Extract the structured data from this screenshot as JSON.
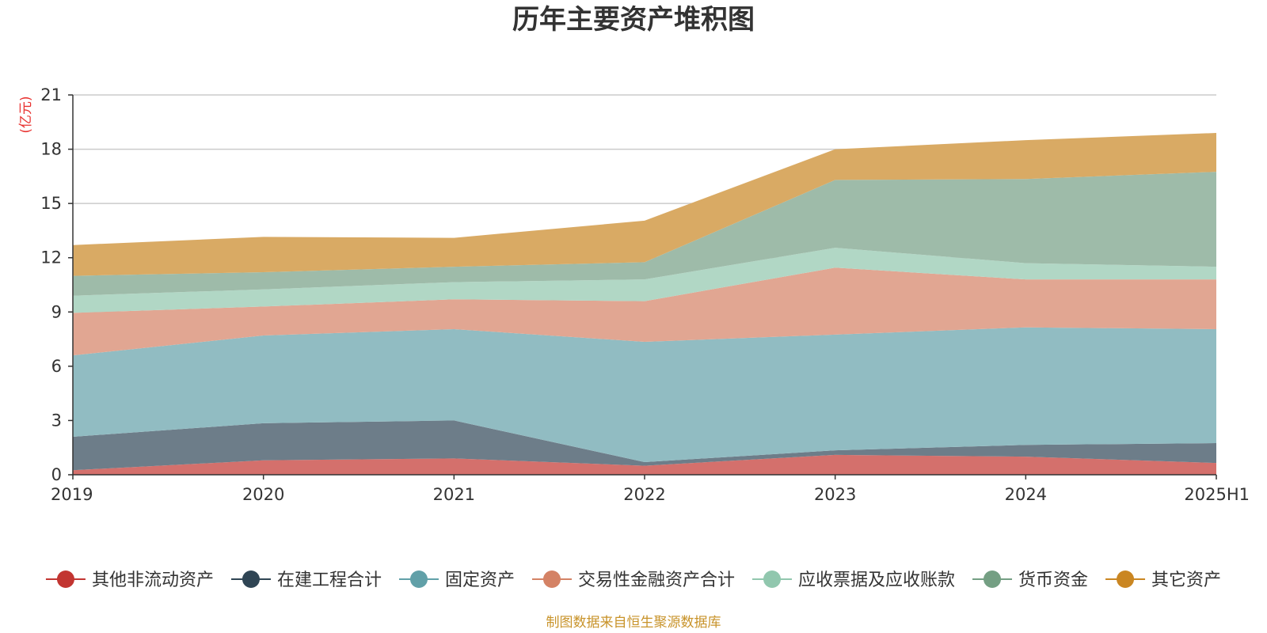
{
  "chart_data": {
    "type": "area",
    "stacked": true,
    "title": "历年主要资产堆积图",
    "ylabel": "(亿元)",
    "ylim": [
      0,
      21
    ],
    "yticks": [
      0,
      3,
      6,
      9,
      12,
      15,
      18,
      21
    ],
    "grid": true,
    "legend_position": "bottom",
    "categories": [
      "2019",
      "2020",
      "2021",
      "2022",
      "2023",
      "2024",
      "2025H1"
    ],
    "series": [
      {
        "name": "其他非流动资产",
        "color": "#c23531",
        "fill": "#d4706c",
        "values": [
          0.25,
          0.8,
          0.9,
          0.5,
          1.1,
          1.0,
          0.65
        ]
      },
      {
        "name": "在建工程合计",
        "color": "#2f4554",
        "fill": "#6d7d89",
        "values": [
          1.85,
          2.05,
          2.1,
          0.2,
          0.25,
          0.65,
          1.1
        ]
      },
      {
        "name": "固定资产",
        "color": "#61a0a8",
        "fill": "#91bcc2",
        "values": [
          4.5,
          4.85,
          5.05,
          6.65,
          6.4,
          6.5,
          6.3
        ]
      },
      {
        "name": "交易性金融资产合计",
        "color": "#d48265",
        "fill": "#e1a692",
        "values": [
          2.35,
          1.6,
          1.65,
          2.25,
          3.7,
          2.65,
          2.75
        ]
      },
      {
        "name": "应收票据及应收账款",
        "color": "#91c7ae",
        "fill": "#b1d7c5",
        "values": [
          0.95,
          0.95,
          0.95,
          1.2,
          1.1,
          0.9,
          0.7
        ]
      },
      {
        "name": "货币资金",
        "color": "#749f83",
        "fill": "#9ebba9",
        "values": [
          1.1,
          0.95,
          0.85,
          0.95,
          3.75,
          4.65,
          5.25
        ]
      },
      {
        "name": "其它资产",
        "color": "#ca8622",
        "fill": "#d9aa64",
        "values": [
          1.7,
          1.95,
          1.6,
          2.3,
          1.7,
          2.15,
          2.15
        ]
      }
    ]
  },
  "footer": {
    "source": "制图数据来自恒生聚源数据库"
  }
}
